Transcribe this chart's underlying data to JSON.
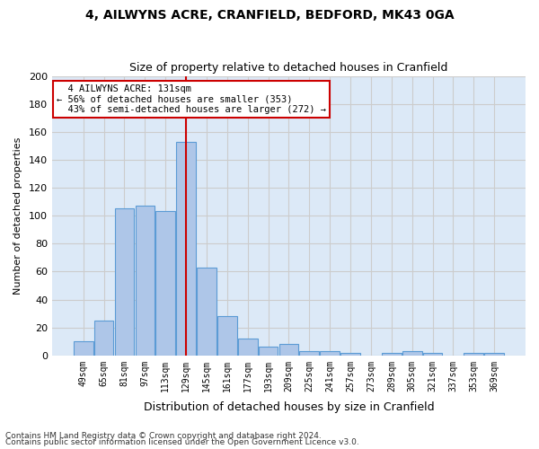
{
  "title": "4, AILWYNS ACRE, CRANFIELD, BEDFORD, MK43 0GA",
  "subtitle": "Size of property relative to detached houses in Cranfield",
  "xlabel": "Distribution of detached houses by size in Cranfield",
  "ylabel": "Number of detached properties",
  "categories": [
    "49sqm",
    "65sqm",
    "81sqm",
    "97sqm",
    "113sqm",
    "129sqm",
    "145sqm",
    "161sqm",
    "177sqm",
    "193sqm",
    "209sqm",
    "225sqm",
    "241sqm",
    "257sqm",
    "273sqm",
    "289sqm",
    "305sqm",
    "321sqm",
    "337sqm",
    "353sqm",
    "369sqm"
  ],
  "values": [
    10,
    25,
    105,
    107,
    103,
    153,
    63,
    28,
    12,
    6,
    8,
    3,
    3,
    2,
    0,
    2,
    3,
    2,
    0,
    2,
    2
  ],
  "bar_color": "#aec6e8",
  "bar_edge_color": "#5b9bd5",
  "marker_label": "4 AILWYNS ACRE: 131sqm",
  "pct_smaller": "56% of detached houses are smaller (353)",
  "pct_larger": "43% of semi-detached houses are larger (272)",
  "vline_color": "#cc0000",
  "annotation_box_color": "#cc0000",
  "grid_color": "#cccccc",
  "bg_color": "#dce9f7",
  "footer1": "Contains HM Land Registry data © Crown copyright and database right 2024.",
  "footer2": "Contains public sector information licensed under the Open Government Licence v3.0.",
  "ylim": [
    0,
    200
  ],
  "yticks": [
    0,
    20,
    40,
    60,
    80,
    100,
    120,
    140,
    160,
    180,
    200
  ]
}
